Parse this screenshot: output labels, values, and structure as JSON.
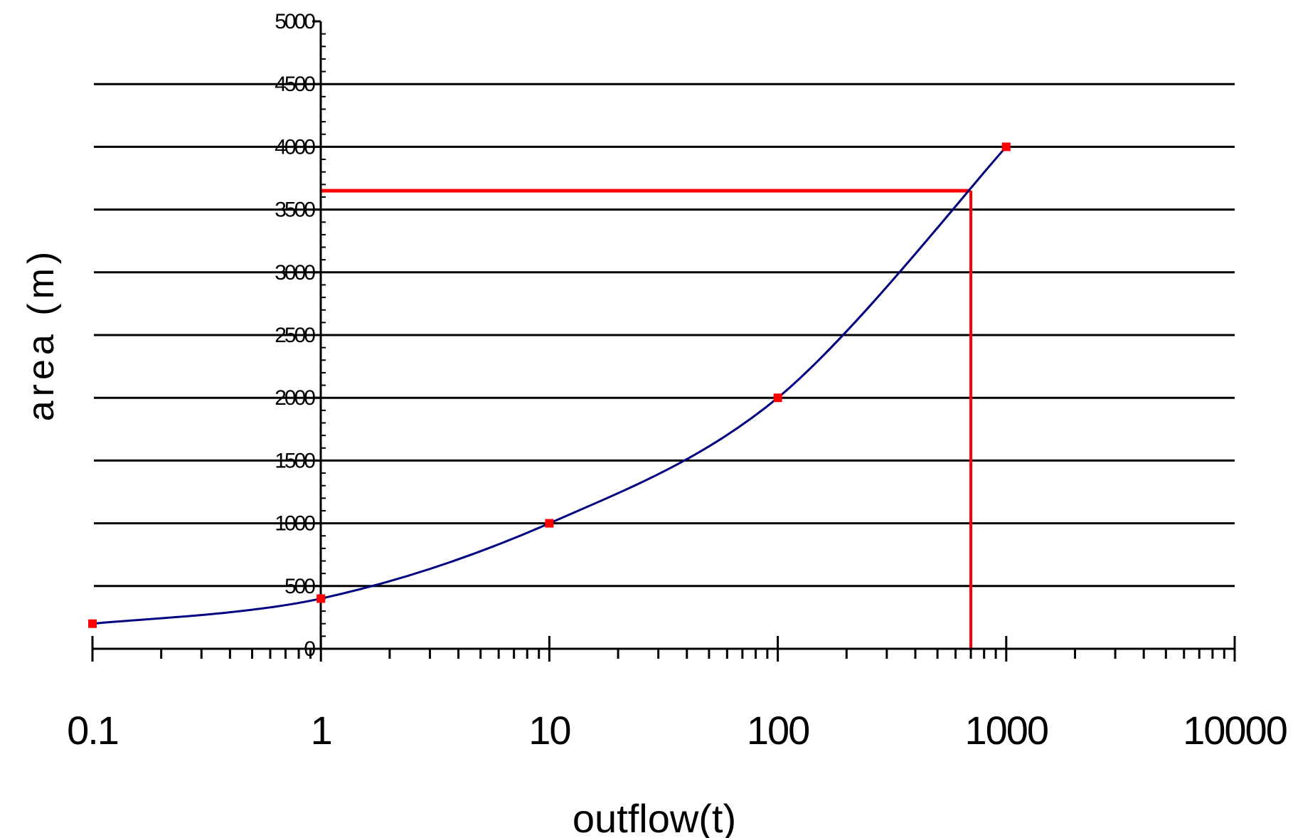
{
  "chart_data": {
    "type": "line",
    "xlabel": "outflow(t)",
    "ylabel": "area (m)",
    "xscale": "log",
    "xlim": [
      0.1,
      10000
    ],
    "ylim": [
      0,
      5000
    ],
    "x_ticks": [
      "0.1",
      "1",
      "10",
      "100",
      "1000",
      "10000"
    ],
    "x_tick_values": [
      0.1,
      1,
      10,
      100,
      1000,
      10000
    ],
    "y_ticks": [
      "0",
      "500",
      "1000",
      "1500",
      "2000",
      "2500",
      "3000",
      "3500",
      "4000",
      "4500",
      "5000"
    ],
    "y_tick_values": [
      0,
      500,
      1000,
      1500,
      2000,
      2500,
      3000,
      3500,
      4000,
      4500,
      5000
    ],
    "grid": "horizontal",
    "series": [
      {
        "x": [
          0.1,
          1,
          10,
          100,
          1000
        ],
        "y": [
          200,
          400,
          1000,
          2000,
          4000
        ],
        "line_color": "#000080",
        "marker_color": "#ff0000"
      }
    ],
    "annotations": [
      {
        "type": "reference-lines",
        "x": 700,
        "y": 3650,
        "color": "#ff0000"
      }
    ]
  }
}
